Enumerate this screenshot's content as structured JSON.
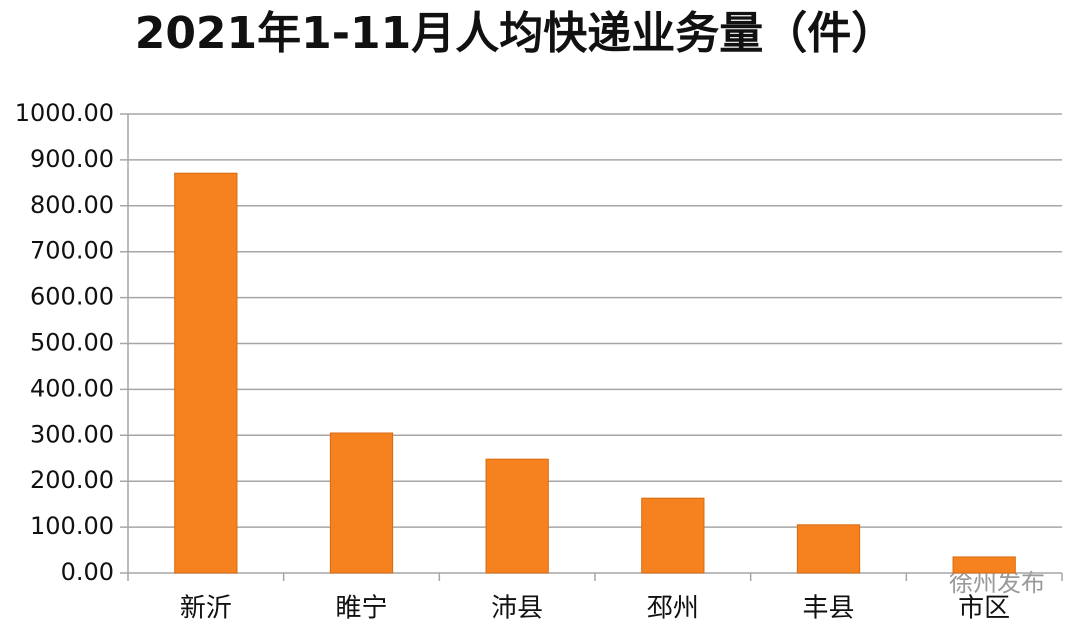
{
  "chart_data": {
    "type": "bar",
    "title": "2021年1-11月人均快递业务量（件）",
    "categories": [
      "新沂",
      "睢宁",
      "沛县",
      "邳州",
      "丰县",
      "市区"
    ],
    "values": [
      871,
      305,
      248,
      163,
      105,
      35
    ],
    "color": "#f5821f",
    "ylim": [
      0,
      1000
    ],
    "yticks": [
      {
        "value": 0,
        "label": "0.00"
      },
      {
        "value": 100,
        "label": "100.00"
      },
      {
        "value": 200,
        "label": "200.00"
      },
      {
        "value": 300,
        "label": "300.00"
      },
      {
        "value": 400,
        "label": "400.00"
      },
      {
        "value": 500,
        "label": "500.00"
      },
      {
        "value": 600,
        "label": "600.00"
      },
      {
        "value": 700,
        "label": "700.00"
      },
      {
        "value": 800,
        "label": "800.00"
      },
      {
        "value": 900,
        "label": "900.00"
      },
      {
        "value": 1000,
        "label": "1000.00"
      }
    ],
    "grid": true,
    "watermark": "徐州发布"
  }
}
